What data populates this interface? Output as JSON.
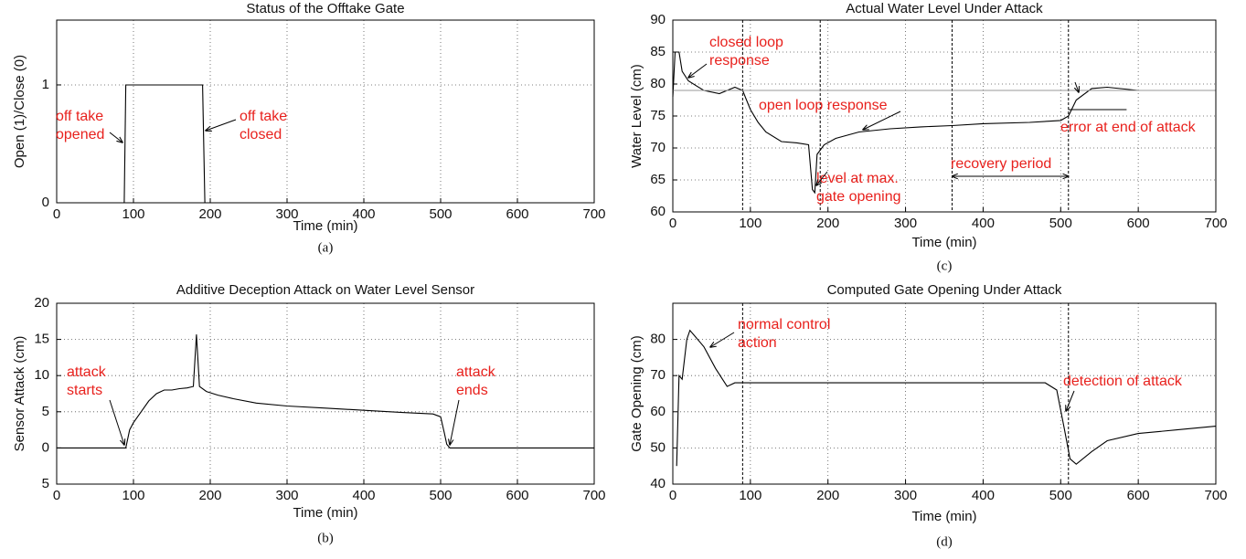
{
  "chart_data": [
    {
      "type": "line",
      "title": "Status of the Offtake Gate",
      "panel_label": "(a)",
      "xlabel": "Time (min)",
      "ylabel": "Open (1)/Close (0)",
      "xlim": [
        0,
        700
      ],
      "xticks": [
        0,
        100,
        200,
        300,
        400,
        500,
        600,
        700
      ],
      "ylim": [
        0,
        1.55
      ],
      "yticks": [
        0,
        1
      ],
      "grid": true,
      "series": [
        {
          "color": "#000000",
          "x": [
            0,
            88,
            90,
            190,
            193,
            700
          ],
          "values": [
            0,
            0,
            1,
            1,
            0,
            0
          ]
        }
      ],
      "annotations": [
        [
          "off take",
          "opened"
        ],
        [
          "off take",
          "closed"
        ]
      ]
    },
    {
      "type": "line",
      "title": "Additive Deception Attack on Water Level Sensor",
      "panel_label": "(b)",
      "xlabel": "Time (min)",
      "ylabel": "Sensor Attack (cm)",
      "xlim": [
        0,
        700
      ],
      "xticks": [
        0,
        100,
        200,
        300,
        400,
        500,
        600,
        700
      ],
      "ylim": [
        -5,
        20
      ],
      "yticks": [
        {
          "value": -5,
          "label": "5"
        },
        0,
        5,
        10,
        15,
        20
      ],
      "grid": true,
      "series": [
        {
          "color": "#000000",
          "x": [
            0,
            90,
            95,
            100,
            110,
            120,
            130,
            140,
            150,
            160,
            170,
            178,
            182,
            186,
            195,
            210,
            230,
            260,
            300,
            350,
            400,
            450,
            490,
            500,
            505,
            508,
            512,
            700
          ],
          "values": [
            0,
            0,
            2.5,
            3.5,
            5,
            6.5,
            7.5,
            8,
            8,
            8.2,
            8.3,
            8.5,
            15.7,
            8.5,
            7.8,
            7.3,
            6.8,
            6.2,
            5.8,
            5.5,
            5.2,
            4.9,
            4.7,
            4.3,
            2,
            0.5,
            0,
            0
          ]
        }
      ],
      "annotations": [
        [
          "attack",
          "starts"
        ],
        [
          "attack",
          "ends"
        ]
      ]
    },
    {
      "type": "line",
      "title": "Actual Water Level Under Attack",
      "panel_label": "(c)",
      "xlabel": "Time (min)",
      "ylabel": "Water Level (cm)",
      "xlim": [
        0,
        700
      ],
      "xticks": [
        0,
        100,
        200,
        300,
        400,
        500,
        600,
        700
      ],
      "ylim": [
        60,
        90
      ],
      "yticks": [
        60,
        65,
        70,
        75,
        80,
        85,
        90
      ],
      "grid": true,
      "vlines": [
        90,
        190,
        360,
        510
      ],
      "series": [
        {
          "color": "#000000",
          "x": [
            0,
            3,
            8,
            12,
            20,
            40,
            60,
            80,
            90,
            95,
            100,
            110,
            120,
            140,
            160,
            175,
            180,
            183,
            186,
            195,
            210,
            240,
            280,
            320,
            360,
            400,
            460,
            500,
            510,
            520,
            540,
            560,
            600,
            650,
            700
          ],
          "values": [
            78,
            85,
            85,
            82,
            80.5,
            79,
            78.5,
            79.5,
            79,
            77.5,
            76,
            74,
            72.5,
            71,
            70.8,
            70.5,
            63.5,
            63,
            69,
            70.5,
            71.5,
            72.5,
            73,
            73.3,
            73.5,
            73.8,
            74,
            74.3,
            75,
            77.5,
            79.3,
            79.5,
            79,
            79,
            79
          ]
        },
        {
          "color": "#999999",
          "x": [
            0,
            700
          ],
          "values": [
            79,
            79
          ]
        },
        {
          "color": "#000000",
          "x": [
            510,
            585
          ],
          "values": [
            76,
            76
          ]
        }
      ],
      "annotations": [
        [
          "closed loop",
          "response"
        ],
        [
          "open loop response"
        ],
        [
          "level at max.",
          "gate opening"
        ],
        [
          "recovery period"
        ],
        [
          "error at end of attack"
        ]
      ]
    },
    {
      "type": "line",
      "title": "Computed Gate Opening Under Attack",
      "panel_label": "(d)",
      "xlabel": "Time (min)",
      "ylabel": "Gate Opening (cm)",
      "xlim": [
        0,
        700
      ],
      "xticks": [
        0,
        100,
        200,
        300,
        400,
        500,
        600,
        700
      ],
      "ylim": [
        40,
        90
      ],
      "yticks": [
        40,
        50,
        60,
        70,
        80
      ],
      "grid": true,
      "vlines": [
        90,
        510
      ],
      "series": [
        {
          "color": "#000000",
          "x": [
            5,
            8,
            12,
            18,
            22,
            28,
            40,
            55,
            70,
            80,
            90,
            480,
            495,
            505,
            512,
            520,
            540,
            560,
            600,
            650,
            700
          ],
          "values": [
            45,
            70,
            69,
            80,
            82.5,
            81,
            78,
            72,
            67,
            68,
            68,
            68,
            66,
            55,
            47,
            45.5,
            49,
            52,
            54,
            55,
            56
          ]
        }
      ],
      "annotations": [
        [
          "normal control",
          "action"
        ],
        [
          "detection of attack"
        ]
      ]
    }
  ]
}
